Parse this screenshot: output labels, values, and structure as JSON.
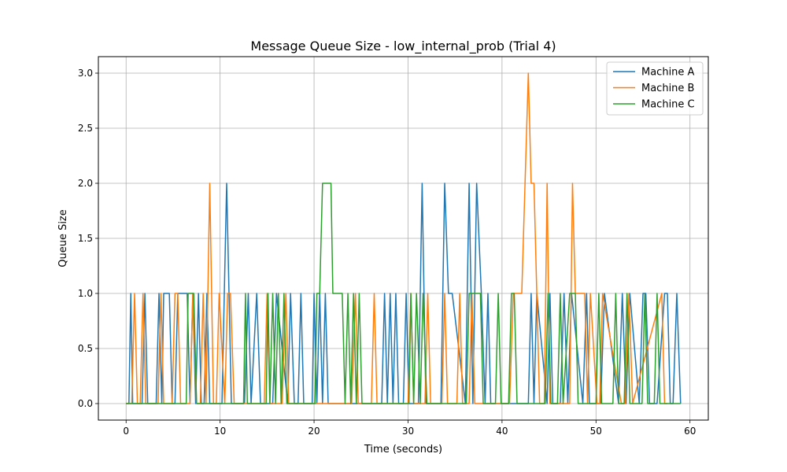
{
  "chart_data": {
    "type": "line",
    "title": "Message Queue Size - low_internal_prob (Trial 4)",
    "xlabel": "Time (seconds)",
    "ylabel": "Queue Size",
    "xlim": [
      -2.95,
      61.95
    ],
    "ylim": [
      -0.15,
      3.15
    ],
    "xticks": [
      0,
      10,
      20,
      30,
      40,
      50,
      60
    ],
    "yticks": [
      0.0,
      0.5,
      1.0,
      1.5,
      2.0,
      2.5,
      3.0
    ],
    "xtick_labels": [
      "0",
      "10",
      "20",
      "30",
      "40",
      "50",
      "60"
    ],
    "ytick_labels": [
      "0.0",
      "0.5",
      "1.0",
      "1.5",
      "2.0",
      "2.5",
      "3.0"
    ],
    "grid": true,
    "legend_position": "top-right",
    "series": [
      {
        "name": "Machine A",
        "color": "#1f77b4",
        "x": [
          0,
          0.3,
          0.5,
          0.7,
          1.7,
          2.0,
          2.3,
          3.2,
          3.5,
          3.8,
          4.0,
          4.3,
          4.6,
          4.9,
          5.2,
          5.5,
          6.5,
          6.8,
          7.1,
          7.4,
          7.7,
          8.0,
          8.3,
          8.6,
          8.9,
          10.2,
          10.7,
          11.2,
          12.6,
          13.0,
          13.3,
          13.9,
          14.3,
          15.6,
          16.0,
          17.2,
          17.5,
          17.9,
          18.3,
          18.6,
          18.9,
          19.8,
          20.0,
          20.3,
          20.6,
          20.9,
          21.2,
          21.5,
          27.2,
          27.5,
          27.8,
          28.1,
          28.4,
          28.7,
          29.0,
          29.5,
          29.8,
          30.1,
          31.1,
          31.5,
          31.9,
          33.5,
          33.9,
          34.3,
          34.7,
          36.1,
          36.5,
          36.9,
          37.3,
          37.8,
          38.2,
          38.5,
          38.8,
          39.2,
          42.8,
          43.1,
          43.4,
          43.7,
          44.8,
          45.1,
          45.4,
          46.2,
          46.6,
          47.0,
          47.4,
          48.6,
          49.0,
          49.3,
          50.5,
          50.9,
          52.4,
          52.8,
          53.2,
          53.6,
          54.6,
          55.0,
          55.3,
          55.7,
          56.5,
          57.3,
          57.6,
          57.9,
          58.2,
          58.6,
          59.0
        ],
        "y": [
          0,
          0,
          1,
          0,
          0,
          1,
          0,
          0,
          1,
          0,
          1,
          1,
          1,
          0,
          0,
          1,
          1,
          0,
          1,
          0,
          1,
          0,
          0,
          1,
          0,
          0,
          2,
          0,
          0,
          1,
          0,
          1,
          0,
          0,
          1,
          0,
          1,
          0,
          0,
          1,
          0,
          0,
          1,
          0,
          1,
          0,
          1,
          0,
          0,
          1,
          0,
          1,
          0,
          1,
          0,
          0,
          1,
          0,
          0,
          2,
          0,
          0,
          2,
          1,
          1,
          0,
          2,
          0,
          2,
          1,
          0,
          1,
          0,
          0,
          0,
          1,
          0,
          1,
          0,
          1,
          0,
          0,
          1,
          0,
          1,
          0,
          1,
          0,
          0,
          1,
          0,
          1,
          0,
          1,
          0,
          1,
          1,
          0,
          0,
          1,
          1,
          0,
          0,
          1,
          0
        ]
      },
      {
        "name": "Machine B",
        "color": "#ff7f0e",
        "x": [
          0,
          0.6,
          0.9,
          1.2,
          1.5,
          1.8,
          2.1,
          3.4,
          3.7,
          4.0,
          4.9,
          5.2,
          5.5,
          5.8,
          6.8,
          7.1,
          7.5,
          7.9,
          8.2,
          8.5,
          8.9,
          9.3,
          9.6,
          9.9,
          10.5,
          10.8,
          11.1,
          11.5,
          14.7,
          15.0,
          15.3,
          16.6,
          17.0,
          17.3,
          17.8,
          20.5,
          20.8,
          21.1,
          24.0,
          24.4,
          24.7,
          25.1,
          26.1,
          26.4,
          26.7,
          30.0,
          30.3,
          30.6,
          31.8,
          32.1,
          32.4,
          32.7,
          33.6,
          33.9,
          34.2,
          35.2,
          35.5,
          35.8,
          36.5,
          36.8,
          37.1,
          40.8,
          41.2,
          41.6,
          42.1,
          42.8,
          43.1,
          43.4,
          43.7,
          44.0,
          44.5,
          44.8,
          45.1,
          47.2,
          47.5,
          47.8,
          48.8,
          49.1,
          49.4,
          50.1,
          50.4,
          50.7,
          52.7,
          53.1,
          53.5,
          53.9,
          57.0,
          57.3,
          57.6
        ],
        "y": [
          0,
          0,
          1,
          0,
          0,
          1,
          0,
          0,
          1,
          0,
          0,
          1,
          1,
          0,
          0,
          1,
          0,
          0,
          1,
          0,
          2,
          0,
          0,
          1,
          0,
          1,
          1,
          0,
          0,
          1,
          0,
          0,
          1,
          0,
          0,
          0,
          0,
          0,
          0,
          1,
          0,
          0,
          0,
          1,
          0,
          0,
          1,
          0,
          0,
          1,
          0,
          0,
          0,
          1,
          0,
          0,
          1,
          0,
          0,
          1,
          0,
          0,
          1,
          1,
          1,
          3,
          2,
          2,
          1,
          0,
          0,
          2,
          0,
          0,
          2,
          1,
          1,
          0,
          1,
          0,
          0,
          1,
          0,
          0,
          1,
          0,
          1,
          0,
          0
        ]
      },
      {
        "name": "Machine C",
        "color": "#2ca02c",
        "x": [
          0,
          6.4,
          6.6,
          6.9,
          7.2,
          7.5,
          7.8,
          12.5,
          12.7,
          12.9,
          14.9,
          15.1,
          15.3,
          15.6,
          15.9,
          16.2,
          16.5,
          16.8,
          17.1,
          17.4,
          20.1,
          20.3,
          20.6,
          20.9,
          21.2,
          21.5,
          21.8,
          22.0,
          22.2,
          23.0,
          23.3,
          23.6,
          23.9,
          24.2,
          24.5,
          24.8,
          25.1,
          25.4,
          30.1,
          30.3,
          30.6,
          30.9,
          31.3,
          31.6,
          32.0,
          32.4,
          36.2,
          36.5,
          37.1,
          37.7,
          38.0,
          38.3,
          39.3,
          39.6,
          39.9,
          40.7,
          41.0,
          41.3,
          41.6,
          41.9,
          44.6,
          44.9,
          45.2,
          45.9,
          46.2,
          46.5,
          47.2,
          47.5,
          47.8,
          48.1,
          48.4,
          50.0,
          50.3,
          50.6,
          51.8,
          52.1,
          52.4,
          53.0,
          53.3,
          53.6,
          54.9,
          55.2,
          55.5,
          56.2,
          56.5,
          56.8,
          59.0
        ],
        "y": [
          0,
          0,
          1,
          1,
          1,
          0,
          0,
          0,
          1,
          0,
          0,
          1,
          0,
          1,
          0,
          1,
          0,
          1,
          0,
          0,
          0,
          1,
          1,
          2,
          2,
          2,
          2,
          1,
          1,
          1,
          0,
          1,
          0,
          1,
          0,
          1,
          0,
          0,
          0,
          1,
          0,
          1,
          0,
          1,
          0,
          0,
          0,
          1,
          1,
          1,
          0,
          0,
          0,
          1,
          0,
          0,
          1,
          1,
          0,
          0,
          0,
          1,
          0,
          0,
          1,
          0,
          1,
          1,
          1,
          0,
          0,
          0,
          1,
          0,
          0,
          1,
          0,
          0,
          1,
          0,
          0,
          1,
          0,
          0,
          1,
          0,
          0
        ]
      }
    ]
  }
}
